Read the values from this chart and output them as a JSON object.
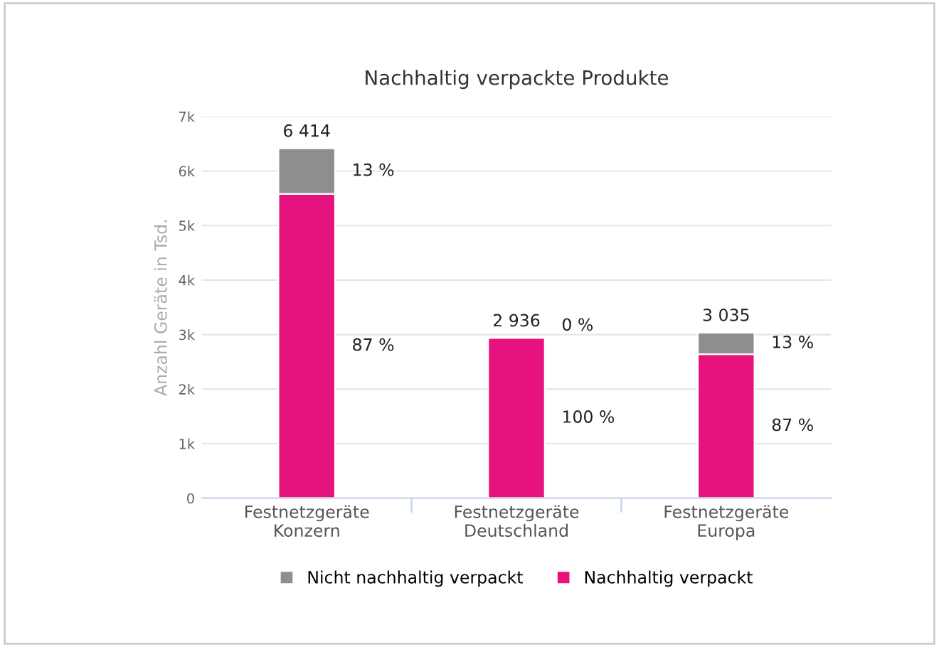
{
  "chart_data": {
    "type": "bar",
    "stacked": true,
    "title": "Nachhaltig verpackte Produkte",
    "ylabel": "Anzahl Geräte in Tsd.",
    "categories": [
      "Festnetzgeräte\nKonzern",
      "Festnetzgeräte\nDeutschland",
      "Festnetzgeräte\nEuropa"
    ],
    "series": [
      {
        "name": "Nachhaltig verpackt",
        "color": "#e6127d",
        "values": [
          5580,
          2936,
          2640
        ]
      },
      {
        "name": "Nicht nachhaltig verpackt",
        "color": "#8f8d8f",
        "values": [
          834,
          0,
          395
        ]
      }
    ],
    "totals": [
      "6 414",
      "2 936",
      "3 035"
    ],
    "annotations": [
      "13 %",
      "87 %",
      "0 %",
      "100 %",
      "13 %",
      "87 %"
    ],
    "ylim": [
      0,
      7000
    ],
    "yticks": [
      0,
      {
        "value": 1000,
        "label": "1k"
      },
      {
        "value": 2000,
        "label": "2k"
      },
      {
        "value": 3000,
        "label": "3k"
      },
      {
        "value": 4000,
        "label": "4k"
      },
      {
        "value": 5000,
        "label": "5k"
      },
      {
        "value": 6000,
        "label": "6k"
      },
      {
        "value": 7000,
        "label": "7k"
      }
    ],
    "grid": "y",
    "legend": "bottom"
  }
}
